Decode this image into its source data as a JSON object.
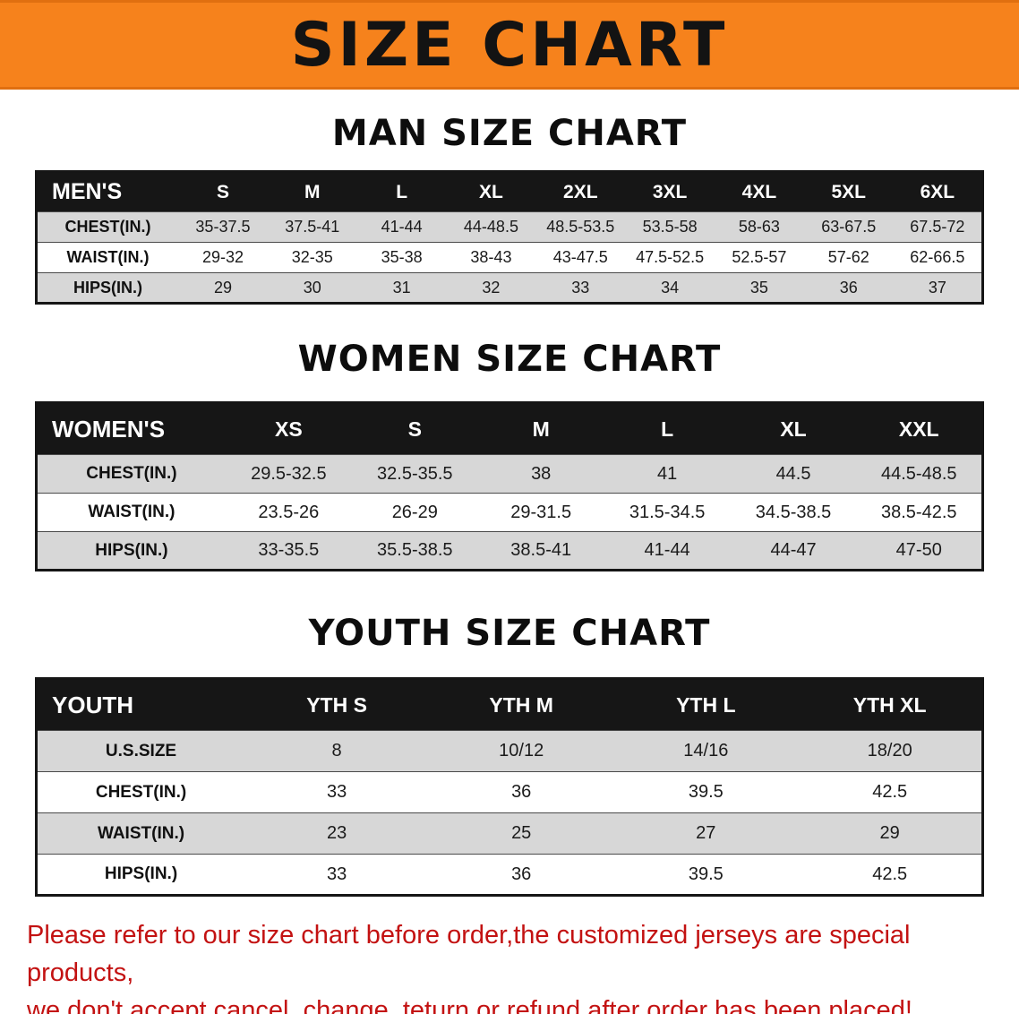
{
  "banner": {
    "title": "SIZE CHART"
  },
  "colors": {
    "banner_bg": "#f6821c",
    "table_header_bg": "#161616",
    "row_stripe": "#d7d7d7",
    "footer_text": "#c31212"
  },
  "sections": [
    {
      "title": "MAN SIZE CHART",
      "table": {
        "header": [
          "MEN'S",
          "S",
          "M",
          "L",
          "XL",
          "2XL",
          "3XL",
          "4XL",
          "5XL",
          "6XL"
        ],
        "rows": [
          {
            "label": "CHEST(IN.)",
            "values": [
              "35-37.5",
              "37.5-41",
              "41-44",
              "44-48.5",
              "48.5-53.5",
              "53.5-58",
              "58-63",
              "63-67.5",
              "67.5-72"
            ]
          },
          {
            "label": "WAIST(IN.)",
            "values": [
              "29-32",
              "32-35",
              "35-38",
              "38-43",
              "43-47.5",
              "47.5-52.5",
              "52.5-57",
              "57-62",
              "62-66.5"
            ]
          },
          {
            "label": "HIPS(IN.)",
            "values": [
              "29",
              "30",
              "31",
              "32",
              "33",
              "34",
              "35",
              "36",
              "37"
            ]
          }
        ]
      }
    },
    {
      "title": "WOMEN SIZE CHART",
      "table": {
        "header": [
          "WOMEN'S",
          "XS",
          "S",
          "M",
          "L",
          "XL",
          "XXL"
        ],
        "rows": [
          {
            "label": "CHEST(IN.)",
            "values": [
              "29.5-32.5",
              "32.5-35.5",
              "38",
              "41",
              "44.5",
              "44.5-48.5"
            ]
          },
          {
            "label": "WAIST(IN.)",
            "values": [
              "23.5-26",
              "26-29",
              "29-31.5",
              "31.5-34.5",
              "34.5-38.5",
              "38.5-42.5"
            ]
          },
          {
            "label": "HIPS(IN.)",
            "values": [
              "33-35.5",
              "35.5-38.5",
              "38.5-41",
              "41-44",
              "44-47",
              "47-50"
            ]
          }
        ]
      }
    },
    {
      "title": "YOUTH SIZE CHART",
      "table": {
        "header": [
          "YOUTH",
          "YTH S",
          "YTH M",
          "YTH L",
          "YTH XL"
        ],
        "rows": [
          {
            "label": "U.S.SIZE",
            "values": [
              "8",
              "10/12",
              "14/16",
              "18/20"
            ]
          },
          {
            "label": "CHEST(IN.)",
            "values": [
              "33",
              "36",
              "39.5",
              "42.5"
            ]
          },
          {
            "label": "WAIST(IN.)",
            "values": [
              "23",
              "25",
              "27",
              "29"
            ]
          },
          {
            "label": "HIPS(IN.)",
            "values": [
              "33",
              "36",
              "39.5",
              "42.5"
            ]
          }
        ]
      }
    }
  ],
  "footer": {
    "line1": "Please refer to our size chart before order,the customized jerseys are special products,",
    "line2": "we don't accept cancel, change, teturn or refund after order has been placed!"
  }
}
